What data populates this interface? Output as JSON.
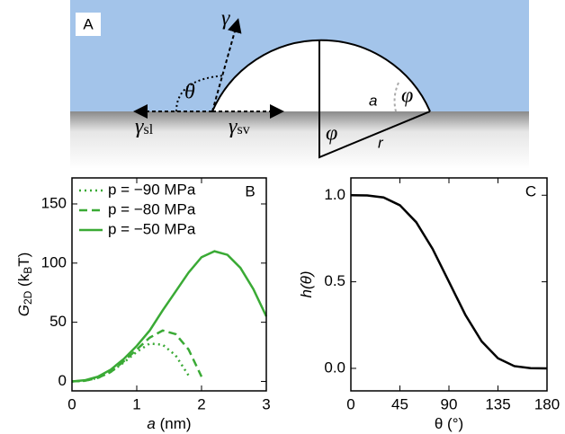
{
  "diagram": {
    "panel_label": "A",
    "gamma": "γ",
    "theta": "θ",
    "gamma_sl": [
      "γ",
      "sl"
    ],
    "gamma_sv": [
      "γ",
      "sv"
    ],
    "a": "a",
    "phi_top": "φ",
    "phi_bottom": "φ",
    "r": "r"
  },
  "chart_data": [
    {
      "type": "line",
      "panel_label": "B",
      "xlabel": [
        "a",
        " (nm)"
      ],
      "ylabel": [
        "G",
        "2D",
        " (k",
        "B",
        "T)"
      ],
      "xlim": [
        0,
        3
      ],
      "ylim": [
        -8,
        172
      ],
      "xticks": [
        0,
        1,
        2,
        3
      ],
      "yticks": [
        0,
        50,
        100,
        150
      ],
      "legend": "upper left",
      "x": [
        0,
        0.2,
        0.4,
        0.6,
        0.8,
        1.0,
        1.2,
        1.4,
        1.6,
        1.8,
        2.0,
        2.2,
        2.4,
        2.6,
        2.8,
        3.0
      ],
      "series": [
        {
          "name": "p = −90 MPa",
          "color": "#3aaa35",
          "dash": "dotted",
          "values": [
            0,
            0.5,
            3,
            8,
            16,
            25,
            32,
            31,
            22,
            5,
            null,
            null,
            null,
            null,
            null,
            null
          ]
        },
        {
          "name": "p = −80 MPa",
          "color": "#3aaa35",
          "dash": "dashed",
          "values": [
            0,
            0.5,
            3,
            8,
            17,
            27,
            37,
            43,
            40,
            27,
            4,
            null,
            null,
            null,
            null,
            null
          ]
        },
        {
          "name": "p = −50 MPa",
          "color": "#3aaa35",
          "dash": "solid",
          "values": [
            0,
            1,
            4,
            10,
            19,
            30,
            43,
            60,
            76,
            92,
            105,
            110,
            107,
            96,
            78,
            55
          ]
        }
      ]
    },
    {
      "type": "line",
      "panel_label": "C",
      "xlabel": [
        "θ",
        " (°)"
      ],
      "ylabel": [
        "h(θ)"
      ],
      "xlim": [
        0,
        180
      ],
      "ylim": [
        -0.13,
        1.1
      ],
      "xticks": [
        0,
        45,
        90,
        135,
        180
      ],
      "yticks": [
        {
          "value": 0,
          "label": "0.0"
        },
        {
          "value": 0.5,
          "label": "0.5"
        },
        {
          "value": 1,
          "label": "1.0"
        }
      ],
      "x": [
        0,
        15,
        30,
        45,
        60,
        75,
        90,
        105,
        120,
        135,
        150,
        165,
        180
      ],
      "series": [
        {
          "color": "#000000",
          "dash": "solid",
          "values": [
            1,
            0.999,
            0.987,
            0.942,
            0.844,
            0.69,
            0.5,
            0.31,
            0.156,
            0.058,
            0.013,
            0.001,
            0
          ]
        }
      ]
    }
  ]
}
